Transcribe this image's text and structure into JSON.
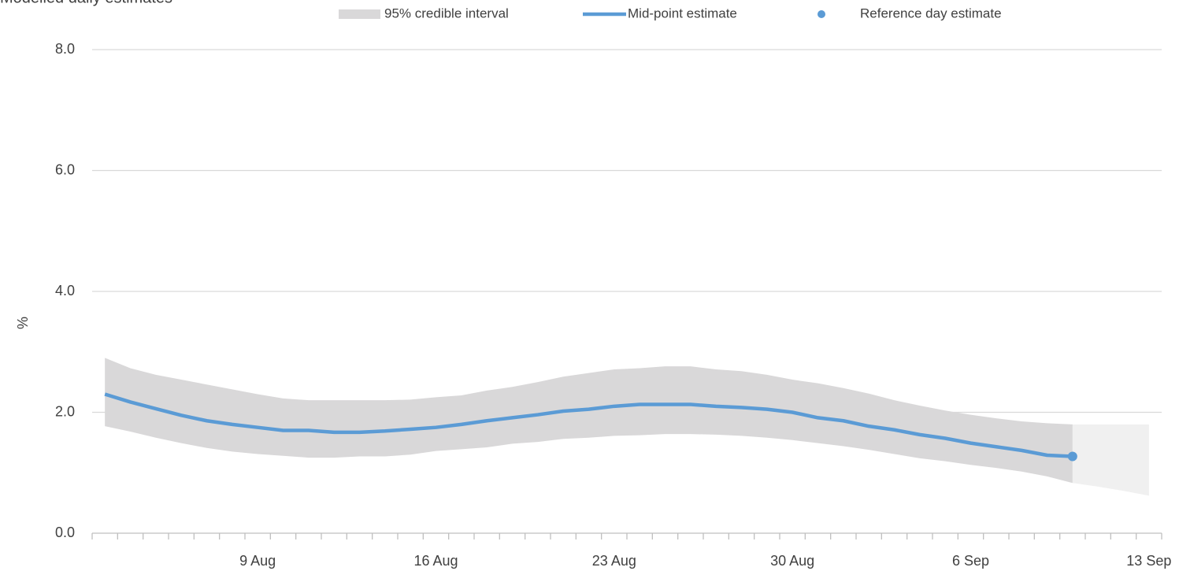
{
  "chart_data": {
    "type": "line",
    "title": "Modelled daily estimates",
    "ylabel": "%",
    "legend": "top",
    "grid": true,
    "ylim": [
      0,
      8
    ],
    "yticks": [
      {
        "value": 0,
        "label": "0.0"
      },
      {
        "value": 2,
        "label": "2.0"
      },
      {
        "value": 4,
        "label": "4.0"
      },
      {
        "value": 6,
        "label": "6.0"
      },
      {
        "value": 8,
        "label": "8.0"
      }
    ],
    "categories": [
      null,
      null,
      null,
      null,
      null,
      null,
      "9 Aug",
      null,
      null,
      null,
      null,
      null,
      null,
      "16 Aug",
      null,
      null,
      null,
      null,
      null,
      null,
      "23 Aug",
      null,
      null,
      null,
      null,
      null,
      null,
      "30 Aug",
      null,
      null,
      null,
      null,
      null,
      null,
      "6 Sep",
      null,
      null,
      null,
      null,
      null,
      null,
      "13 Sep"
    ],
    "series": [
      {
        "name": "95% credible interval",
        "type": "band",
        "color": "#d9d8d9",
        "upper": [
          2.9,
          2.73,
          2.62,
          2.54,
          2.46,
          2.38,
          2.3,
          2.23,
          2.2,
          2.2,
          2.2,
          2.2,
          2.21,
          2.25,
          2.28,
          2.36,
          2.42,
          2.5,
          2.59,
          2.65,
          2.71,
          2.73,
          2.76,
          2.76,
          2.71,
          2.68,
          2.62,
          2.54,
          2.48,
          2.4,
          2.31,
          2.2,
          2.11,
          2.03,
          1.96,
          1.9,
          1.85,
          1.82,
          1.8,
          null,
          null,
          null
        ],
        "lower": [
          1.77,
          1.68,
          1.58,
          1.49,
          1.41,
          1.35,
          1.31,
          1.28,
          1.25,
          1.25,
          1.27,
          1.27,
          1.3,
          1.36,
          1.39,
          1.42,
          1.48,
          1.51,
          1.56,
          1.58,
          1.61,
          1.62,
          1.64,
          1.64,
          1.63,
          1.61,
          1.58,
          1.54,
          1.49,
          1.44,
          1.38,
          1.31,
          1.24,
          1.19,
          1.13,
          1.08,
          1.02,
          0.94,
          0.83,
          null,
          null,
          null
        ]
      },
      {
        "name": "Mid-point estimate",
        "type": "line",
        "color": "#5b9bd5",
        "values": [
          2.3,
          2.17,
          2.06,
          1.95,
          1.86,
          1.8,
          1.75,
          1.7,
          1.7,
          1.67,
          1.67,
          1.69,
          1.72,
          1.75,
          1.8,
          1.86,
          1.91,
          1.96,
          2.02,
          2.05,
          2.1,
          2.13,
          2.13,
          2.13,
          2.1,
          2.08,
          2.05,
          2.0,
          1.91,
          1.86,
          1.77,
          1.71,
          1.63,
          1.57,
          1.49,
          1.43,
          1.37,
          1.29,
          1.27,
          null,
          null,
          null
        ]
      },
      {
        "name": "Reference day estimate",
        "type": "point",
        "color": "#5b9bd5",
        "values": [
          null,
          null,
          null,
          null,
          null,
          null,
          null,
          null,
          null,
          null,
          null,
          null,
          null,
          null,
          null,
          null,
          null,
          null,
          null,
          null,
          null,
          null,
          null,
          null,
          null,
          null,
          null,
          null,
          null,
          null,
          null,
          null,
          null,
          null,
          null,
          null,
          null,
          null,
          1.27,
          null,
          null,
          null
        ]
      }
    ],
    "shaded_band": {
      "color": "#f0f0f0",
      "upper": [
        null,
        null,
        null,
        null,
        null,
        null,
        null,
        null,
        null,
        null,
        null,
        null,
        null,
        null,
        null,
        null,
        null,
        null,
        null,
        null,
        null,
        null,
        null,
        null,
        null,
        null,
        null,
        null,
        null,
        null,
        null,
        null,
        null,
        null,
        null,
        null,
        null,
        null,
        1.8,
        1.8,
        1.8,
        1.8
      ],
      "lower": [
        null,
        null,
        null,
        null,
        null,
        null,
        null,
        null,
        null,
        null,
        null,
        null,
        null,
        null,
        null,
        null,
        null,
        null,
        null,
        null,
        null,
        null,
        null,
        null,
        null,
        null,
        null,
        null,
        null,
        null,
        null,
        null,
        null,
        null,
        null,
        null,
        null,
        null,
        0.83,
        0.77,
        0.7,
        0.62
      ]
    }
  }
}
